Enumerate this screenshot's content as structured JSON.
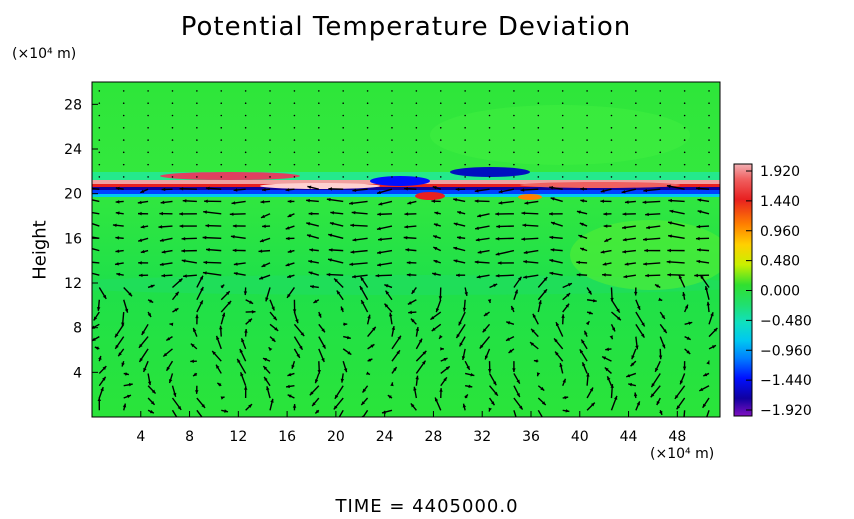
{
  "chart_data": {
    "type": "heatmap",
    "title": "Potential Temperature Deviation",
    "xlabel": "",
    "xunit": "(×10⁴ m)",
    "ylabel": "Height",
    "yunit": "(×10⁴ m)",
    "xlim": [
      0,
      51.5
    ],
    "ylim": [
      0,
      30
    ],
    "xticks": [
      4,
      8,
      12,
      16,
      20,
      24,
      28,
      32,
      36,
      40,
      44,
      48
    ],
    "yticks": [
      4,
      8,
      12,
      16,
      20,
      24,
      28
    ],
    "colorbar": {
      "ticks": [
        "1.920",
        "1.440",
        "0.960",
        "0.480",
        "0.000",
        "−0.480",
        "−0.960",
        "−1.440",
        "−1.920"
      ],
      "range": [
        -1.92,
        1.92
      ]
    },
    "features": [
      {
        "name": "tropopause band",
        "y_range": [
          19.5,
          21.5
        ]
      },
      {
        "name": "wind vectors",
        "field": "u,w"
      }
    ],
    "footer": "TIME  =  4405000.0"
  },
  "colors": {
    "background": "#23e23c",
    "frame": "#000000",
    "arrows": "#000000"
  }
}
